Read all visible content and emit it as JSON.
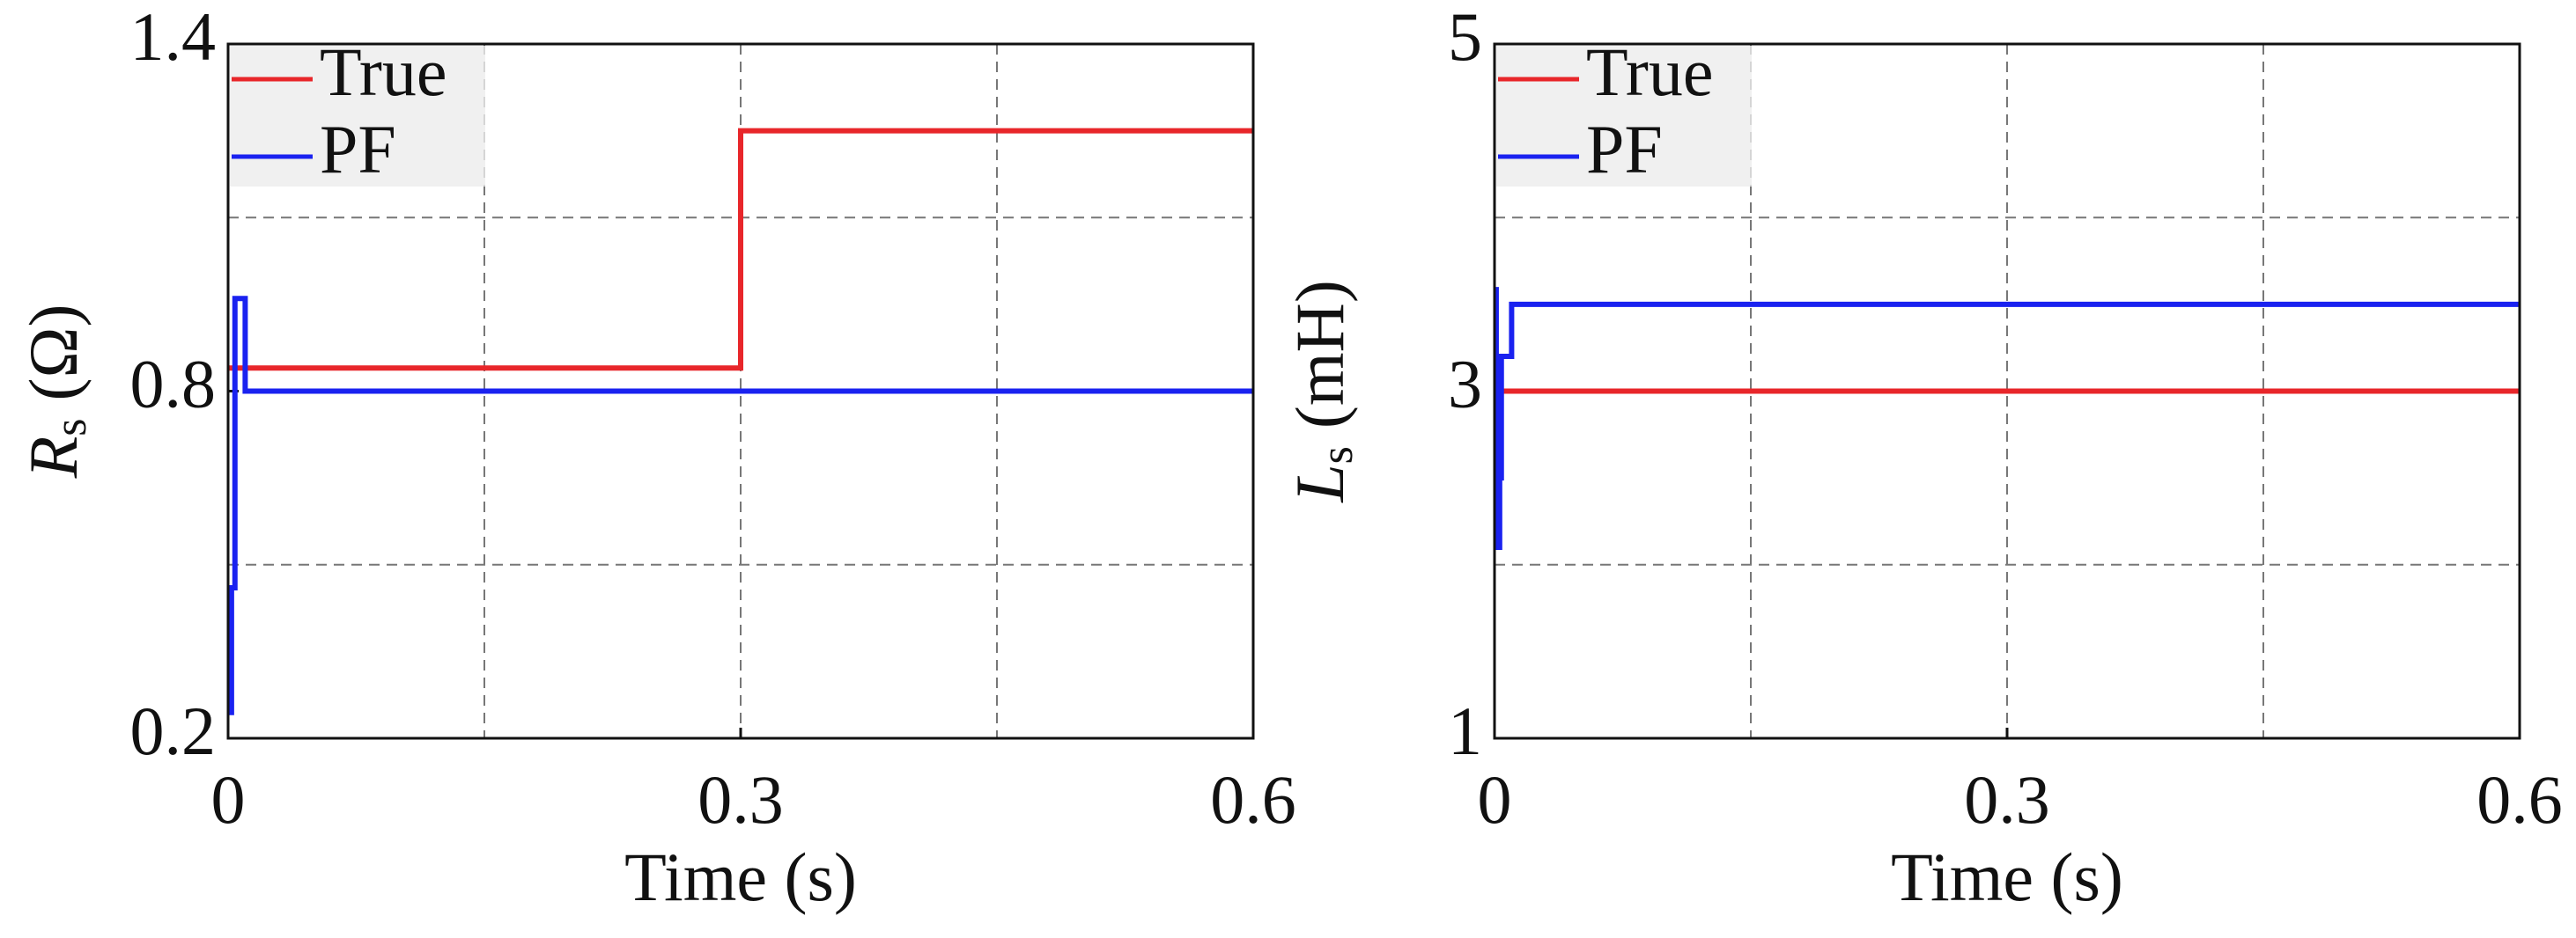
{
  "chart_data": [
    {
      "type": "line",
      "xlabel": "Time (s)",
      "ylabel": {
        "symbol": "R",
        "subscript": "s",
        "unit": "(Ω)"
      },
      "xlim": [
        0,
        0.6
      ],
      "xticks": [
        0,
        0.3,
        0.6
      ],
      "xgrid": [
        0.15,
        0.3,
        0.45
      ],
      "ylim": [
        0.2,
        1.4
      ],
      "yticks": [
        0.2,
        0.8,
        1.4
      ],
      "ygrid": [
        0.5,
        0.8,
        1.1
      ],
      "legend": "upper left",
      "series": [
        {
          "name": "True",
          "color": "#e8262a",
          "x": [
            0,
            0.3,
            0.3,
            0.6
          ],
          "values": [
            0.84,
            0.84,
            1.25,
            1.25
          ]
        },
        {
          "name": "PF",
          "color": "#1a22f0",
          "x": [
            0.002,
            0.002,
            0.004,
            0.004,
            0.01,
            0.01,
            0.6
          ],
          "values": [
            0.24,
            0.46,
            0.46,
            0.96,
            0.96,
            0.8,
            0.8
          ]
        }
      ]
    },
    {
      "type": "line",
      "xlabel": "Time (s)",
      "ylabel": {
        "symbol": "L",
        "subscript": "s",
        "unit": "(mH)"
      },
      "xlim": [
        0,
        0.6
      ],
      "xticks": [
        0,
        0.3,
        0.6
      ],
      "xgrid": [
        0.15,
        0.3,
        0.45
      ],
      "ylim": [
        1,
        5
      ],
      "yticks": [
        1,
        3,
        5
      ],
      "ygrid": [
        2,
        3,
        4
      ],
      "legend": "upper left",
      "series": [
        {
          "name": "True",
          "color": "#e8262a",
          "x": [
            0,
            0.6
          ],
          "values": [
            3,
            3
          ]
        },
        {
          "name": "PF",
          "color": "#1a22f0",
          "x": [
            0.001,
            0.001,
            0.003,
            0.003,
            0.004,
            0.004,
            0.01,
            0.01,
            0.6
          ],
          "values": [
            3.6,
            2.1,
            2.1,
            2.5,
            2.5,
            3.2,
            3.2,
            3.5,
            3.5
          ]
        }
      ]
    }
  ]
}
